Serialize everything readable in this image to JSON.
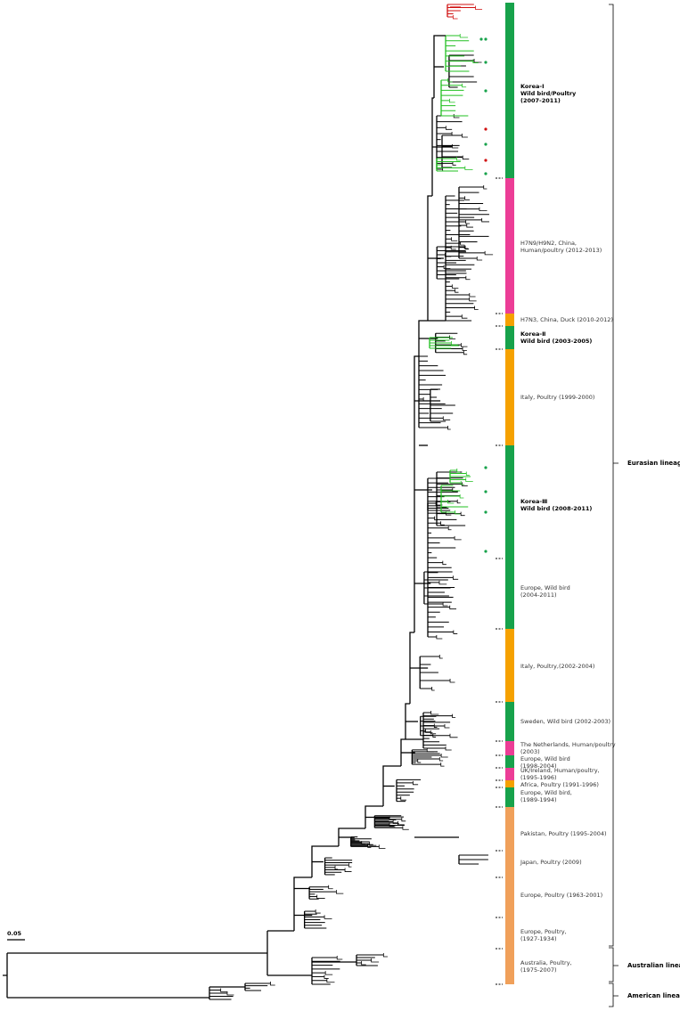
{
  "clades": [
    {
      "lines": [
        "Korea-Ⅰ",
        "Wild bird/Poultry",
        "(2007-2011)"
      ],
      "bold": true,
      "color": "#17a24b"
    },
    {
      "lines": [
        "H7N9/H9N2, China,",
        "Human/poultry (2012-2013)"
      ],
      "bold": false,
      "color": "#ec3d96"
    },
    {
      "lines": [
        "H7N3, China, Duck (2010-2012)"
      ],
      "bold": false,
      "color": "#f5a100"
    },
    {
      "lines": [
        "Korea-Ⅱ",
        "Wild bird (2003-2005)"
      ],
      "bold": true,
      "color": "#17a24b"
    },
    {
      "lines": [
        "Italy, Poultry (1999-2000)"
      ],
      "bold": false,
      "color": "#f5a100"
    },
    {
      "lines": [
        "Korea-Ⅲ",
        "Wild bird (2008-2011)"
      ],
      "bold": true,
      "color": "#17a24b"
    },
    {
      "lines": [
        "Europe, Wild bird",
        "(2004-2011)"
      ],
      "bold": false,
      "color": "#17a24b"
    },
    {
      "lines": [
        "Italy, Poultry,(2002-2004)"
      ],
      "bold": false,
      "color": "#f5a100"
    },
    {
      "lines": [
        "Sweden, Wild bird (2002-2003)"
      ],
      "bold": false,
      "color": "#17a24b"
    },
    {
      "lines": [
        "The Netherlands, Human/poultry",
        "(2003)"
      ],
      "bold": false,
      "color": "#ec3d96"
    },
    {
      "lines": [
        "Europe, Wild bird",
        "(1998-2004)"
      ],
      "bold": false,
      "color": "#17a24b"
    },
    {
      "lines": [
        "UK/Ireland,  Human/poultry,",
        "(1995-1996)"
      ],
      "bold": false,
      "color": "#ec3d96"
    },
    {
      "lines": [
        "Africa, Poultry (1991-1996)"
      ],
      "bold": false,
      "color": "#f5a100"
    },
    {
      "lines": [
        "Europe, Wild bird,",
        "(1989-1994)"
      ],
      "bold": false,
      "color": "#17a24b"
    },
    {
      "lines": [
        "Pakistan, Poultry (1995-2004)"
      ],
      "bold": false,
      "color": "#f0a05a"
    },
    {
      "lines": [
        "Japan, Poultry (2009)"
      ],
      "bold": false,
      "color": "#f0a05a"
    },
    {
      "lines": [
        "Europe, Poultry (1963-2001)"
      ],
      "bold": false,
      "color": "#f0a05a"
    },
    {
      "lines": [
        "Europe, Poultry,",
        "(1927-1934)"
      ],
      "bold": false,
      "color": "#f0a05a"
    },
    {
      "lines": [
        "Australia, Poultry,",
        "(1975-2007)"
      ],
      "bold": false,
      "color": "#f0a05a"
    }
  ],
  "lineages": [
    {
      "label": "Eurasian lineage"
    },
    {
      "label": "Australian lineage"
    },
    {
      "label": "American lineage"
    }
  ],
  "scale_bar": {
    "label": "0.05"
  }
}
